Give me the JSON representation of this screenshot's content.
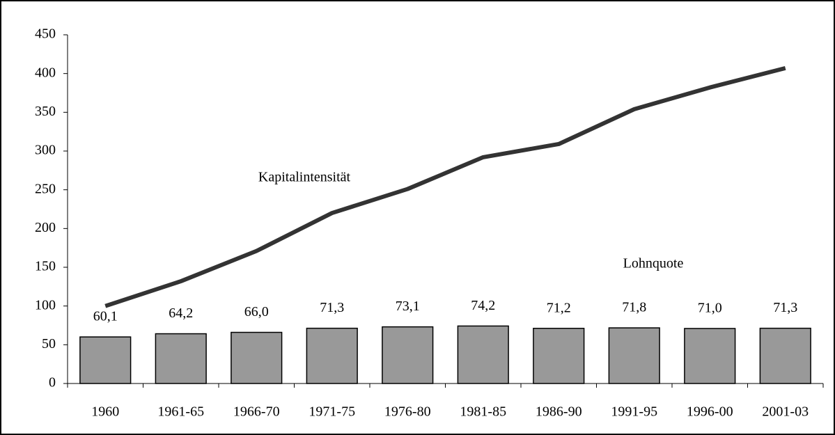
{
  "chart_data": {
    "type": "bar",
    "categories": [
      "1960",
      "1961-65",
      "1966-70",
      "1971-75",
      "1976-80",
      "1981-85",
      "1986-90",
      "1991-95",
      "1996-00",
      "2001-03"
    ],
    "series": [
      {
        "name": "Lohnquote",
        "color": "#999999",
        "values": [
          60.1,
          64.2,
          66.0,
          71.3,
          73.1,
          74.2,
          71.2,
          71.8,
          71.0,
          71.3
        ],
        "value_labels": [
          "60,1",
          "64,2",
          "66,0",
          "71,3",
          "73,1",
          "74,2",
          "71,2",
          "71,8",
          "71,0",
          "71,3"
        ]
      },
      {
        "name": "Kapitalintensität",
        "type": "line",
        "color": "#333333",
        "values": [
          100,
          132,
          171,
          220,
          251,
          292,
          309,
          354,
          382,
          407
        ]
      }
    ],
    "ylim": [
      0,
      450
    ],
    "yticks": [
      0,
      50,
      100,
      150,
      200,
      250,
      300,
      350,
      400,
      450
    ]
  }
}
